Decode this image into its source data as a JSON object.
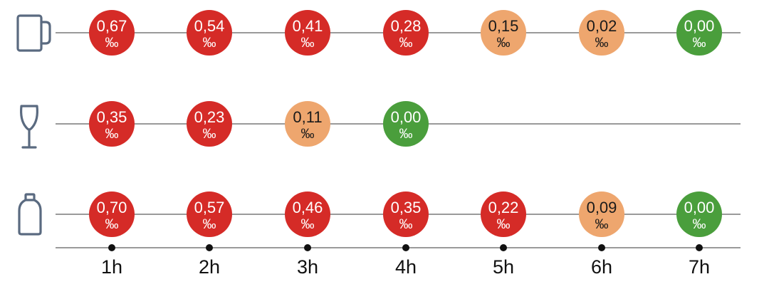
{
  "chart_data": {
    "type": "scatter",
    "categories": [
      "1h",
      "2h",
      "3h",
      "4h",
      "5h",
      "6h",
      "7h"
    ],
    "unit": "‰",
    "colors": {
      "high": "#d52b27",
      "medium": "#eea66e",
      "zero": "#4a9e3c",
      "text_light": "#ffffff",
      "text_dark": "#1a1a1a"
    },
    "series": [
      {
        "icon": "beer-mug-icon",
        "values": [
          "0,67",
          "0,54",
          "0,41",
          "0,28",
          "0,15",
          "0,02",
          "0,00"
        ],
        "levels": [
          "high",
          "high",
          "high",
          "high",
          "medium",
          "medium",
          "zero"
        ]
      },
      {
        "icon": "wine-glass-icon",
        "values": [
          "0,35",
          "0,23",
          "0,11",
          "0,00"
        ],
        "levels": [
          "high",
          "high",
          "medium",
          "zero"
        ]
      },
      {
        "icon": "bottle-icon",
        "values": [
          "0,70",
          "0,57",
          "0,46",
          "0,35",
          "0,22",
          "0,09",
          "0,00"
        ],
        "levels": [
          "high",
          "high",
          "high",
          "high",
          "high",
          "medium",
          "zero"
        ]
      }
    ]
  }
}
